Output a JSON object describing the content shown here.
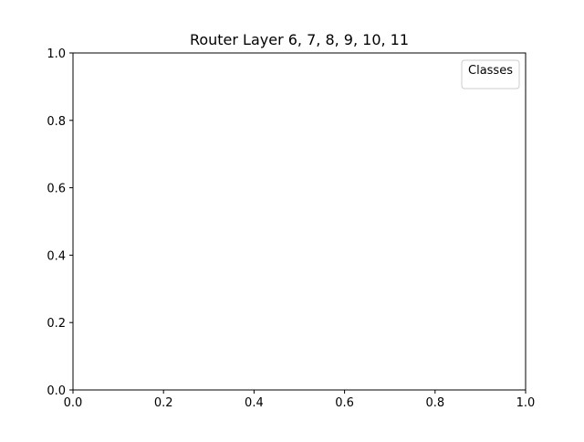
{
  "chart_data": {
    "type": "scatter",
    "title": "Router Layer 6, 7, 8, 9, 10, 11",
    "xlabel": "",
    "ylabel": "",
    "xlim": [
      0.0,
      1.0
    ],
    "ylim": [
      0.0,
      1.0
    ],
    "x_ticks": [
      0.0,
      0.2,
      0.4,
      0.6,
      0.8,
      1.0
    ],
    "y_ticks": [
      0.0,
      0.2,
      0.4,
      0.6,
      0.8,
      1.0
    ],
    "x_tick_labels": [
      "0.0",
      "0.2",
      "0.4",
      "0.6",
      "0.8",
      "1.0"
    ],
    "y_tick_labels": [
      "0.0",
      "0.2",
      "0.4",
      "0.6",
      "0.8",
      "1.0"
    ],
    "grid": false,
    "legend": {
      "title": "Classes",
      "placement": "top-right",
      "entries": []
    },
    "series": []
  }
}
